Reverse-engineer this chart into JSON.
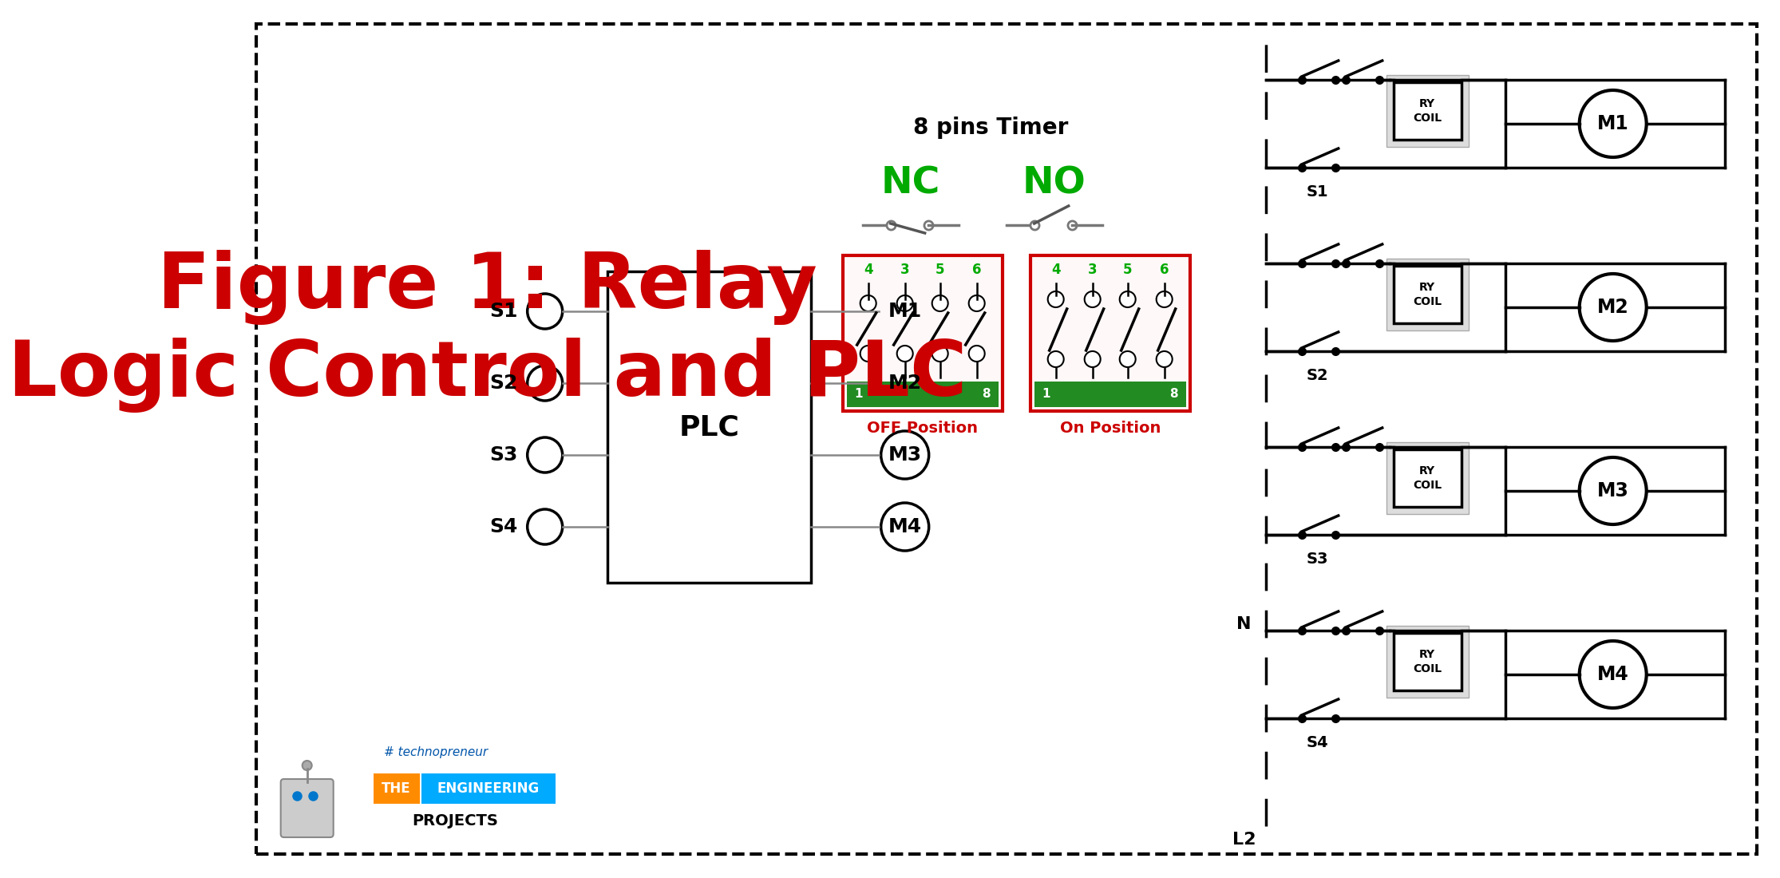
{
  "title_line1": "Figure 1: Relay",
  "title_line2": "Logic Control and PLC",
  "title_color": "#cc0000",
  "bg_color": "#ffffff",
  "timer_label": "8 pins Timer",
  "nc_label": "NC",
  "no_label": "NO",
  "nc_no_color": "#00aa00",
  "off_label": "OFF Position",
  "on_label": "On Position",
  "box_border_color": "#cc0000",
  "switch_numbers": [
    "4",
    "3",
    "5",
    "6"
  ],
  "switch_num_color": "#00aa00",
  "plc_label": "PLC",
  "sensors": [
    "S1",
    "S2",
    "S3",
    "S4"
  ],
  "motors": [
    "M1",
    "M2",
    "M3",
    "M4"
  ],
  "ry_label": "RY\nCOIL",
  "L2_label": "L2",
  "N_label": "N",
  "border_color": "#000000",
  "techno_label": "# technopreneur",
  "the_label": "THE",
  "eng_label": "ENGINEERING",
  "proj_label": "PROJECTS",
  "the_color": "#FF8C00",
  "eng_color": "#00AAFF",
  "proj_color": "#000000"
}
